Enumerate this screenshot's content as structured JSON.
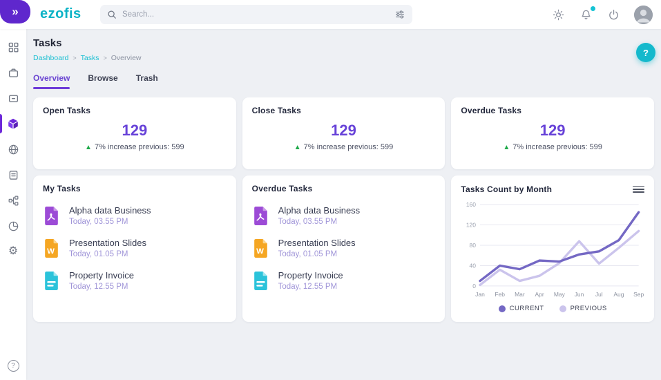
{
  "icons": {
    "double_chevron": "»",
    "gear": "⚙",
    "question": "?",
    "trend_up": "▲"
  },
  "topbar": {
    "logo_text": "ezofis",
    "search": {
      "placeholder": "Search...",
      "icon": "search-icon",
      "filter_icon": "filter-sliders-icon"
    },
    "actions": {
      "theme_icon": "sun-icon",
      "notifications_icon": "bell-icon",
      "notification_dot_color": "#14c3d4",
      "power_icon": "power-icon",
      "avatar": "user-avatar"
    }
  },
  "sidebar": {
    "items": [
      {
        "name": "dashboard"
      },
      {
        "name": "briefcase"
      },
      {
        "name": "inbox-card"
      },
      {
        "name": "tasks-cube",
        "active": true
      },
      {
        "name": "globe"
      },
      {
        "name": "documents"
      },
      {
        "name": "workflow"
      },
      {
        "name": "reports-pie"
      },
      {
        "name": "settings-gear"
      }
    ],
    "help": "help-question"
  },
  "page": {
    "title": "Tasks",
    "breadcrumb_separator": ">",
    "breadcrumb": [
      {
        "label": "Dashboard",
        "link": true
      },
      {
        "label": "Tasks",
        "link": true
      },
      {
        "label": "Overview",
        "link": false
      }
    ],
    "tabs": [
      {
        "label": "Overview",
        "active": true
      },
      {
        "label": "Browse",
        "active": false
      },
      {
        "label": "Trash",
        "active": false
      }
    ],
    "help_button": "?"
  },
  "stat_cards": [
    {
      "title": "Open Tasks",
      "value": "129",
      "change": "7% increase previous: 599"
    },
    {
      "title": "Close Tasks",
      "value": "129",
      "change": "7% increase previous: 599"
    },
    {
      "title": "Overdue Tasks",
      "value": "129",
      "change": "7% increase previous: 599"
    }
  ],
  "task_lists": [
    {
      "title": "My Tasks",
      "items": [
        {
          "name": "Alpha data Business",
          "time": "Today, 03.55 PM",
          "icon": "pdf-file-icon",
          "color": "#9c4bd6"
        },
        {
          "name": "Presentation Slides",
          "time": "Today, 01.05 PM",
          "icon": "word-file-icon",
          "color": "#f5a623"
        },
        {
          "name": "Property Invoice",
          "time": "Today, 12.55 PM",
          "icon": "invoice-file-icon",
          "color": "#2bc3da"
        }
      ]
    },
    {
      "title": "Overdue Tasks",
      "items": [
        {
          "name": "Alpha data Business",
          "time": "Today, 03.55 PM",
          "icon": "pdf-file-icon",
          "color": "#9c4bd6"
        },
        {
          "name": "Presentation Slides",
          "time": "Today, 01.05 PM",
          "icon": "word-file-icon",
          "color": "#f5a623"
        },
        {
          "name": "Property Invoice",
          "time": "Today, 12.55 PM",
          "icon": "invoice-file-icon",
          "color": "#2bc3da"
        }
      ]
    }
  ],
  "chart_data": {
    "type": "line",
    "title": "Tasks Count by Month",
    "categories": [
      "Jan",
      "Feb",
      "Mar",
      "Apr",
      "May",
      "Jun",
      "Jul",
      "Aug",
      "Sep"
    ],
    "series": [
      {
        "name": "CURRENT",
        "color": "#7468c4",
        "values": [
          10,
          40,
          33,
          50,
          48,
          62,
          68,
          90,
          145
        ]
      },
      {
        "name": "PREVIOUS",
        "color": "#cbc4ec",
        "values": [
          2,
          32,
          10,
          20,
          45,
          88,
          44,
          75,
          108
        ]
      }
    ],
    "ylim": [
      0,
      160
    ],
    "yticks": [
      0,
      40,
      80,
      120,
      160
    ],
    "grid": true,
    "legend_position": "bottom"
  },
  "colors": {
    "brand_purple": "#5f27cd",
    "brand_teal": "#0cb3c6",
    "accent_purple": "#6742d8",
    "green_up": "#1faa4a",
    "background": "#eef0f4"
  }
}
